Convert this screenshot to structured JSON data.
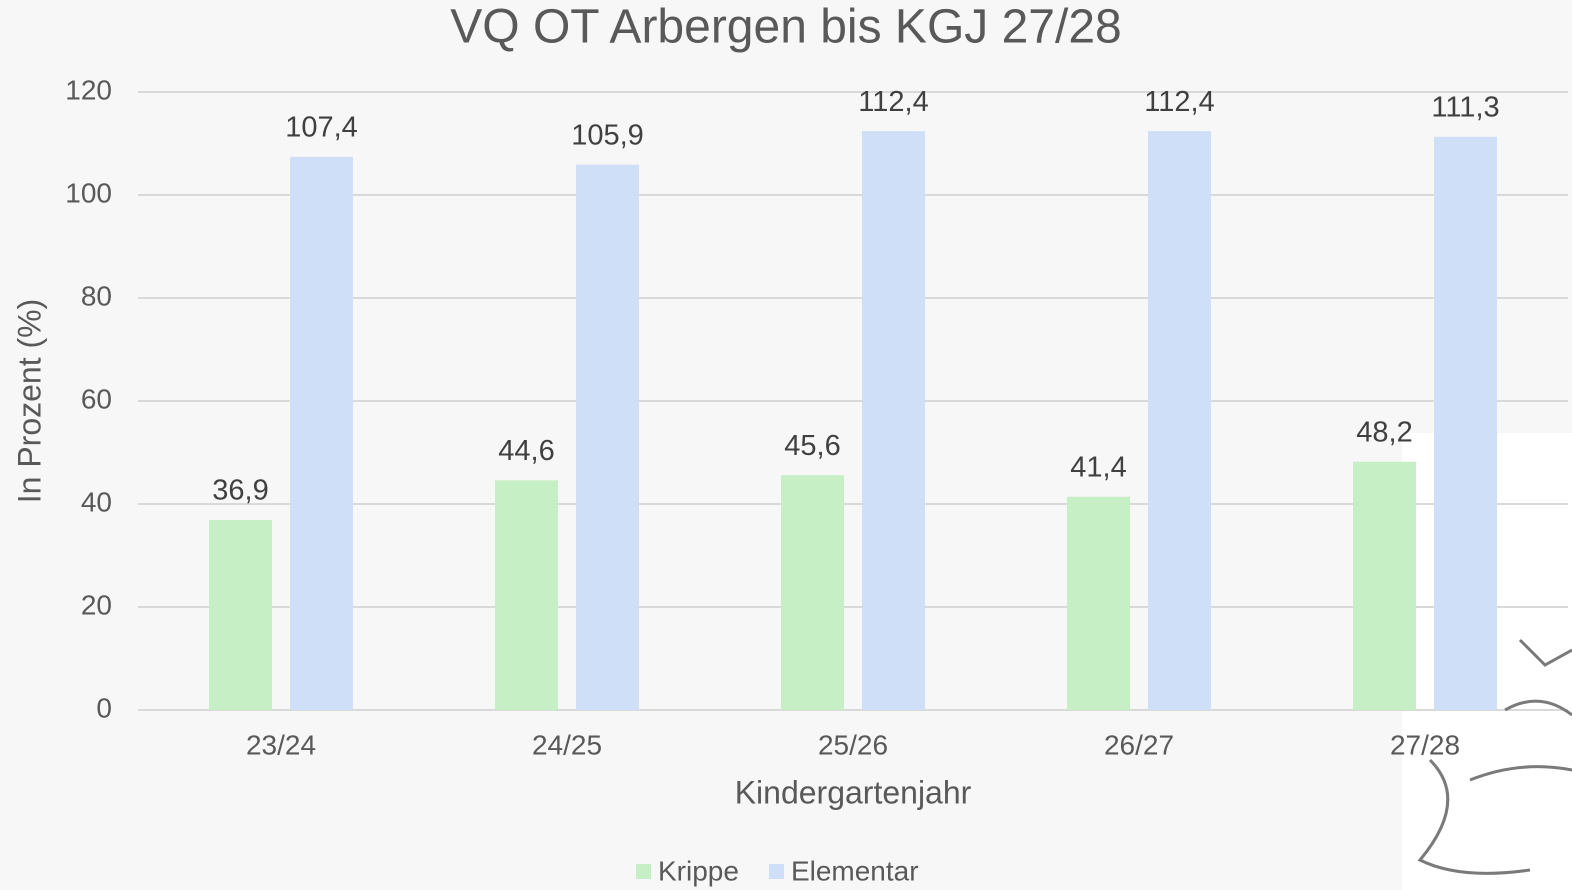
{
  "chart_data": {
    "type": "bar",
    "title": "VQ OT Arbergen bis KGJ 27/28",
    "x_label": "Kindergartenjahr",
    "y_label": "In Prozent (%)",
    "categories": [
      "23/24",
      "24/25",
      "25/26",
      "26/27",
      "27/28"
    ],
    "series": [
      {
        "name": "Krippe",
        "color": "#c6efc6",
        "values": [
          36.9,
          44.6,
          45.6,
          41.4,
          48.2
        ],
        "value_labels": [
          "36,9",
          "44,6",
          "45,6",
          "41,4",
          "48,2"
        ]
      },
      {
        "name": "Elementar",
        "color": "#cfdff7",
        "values": [
          107.4,
          105.9,
          112.4,
          112.4,
          111.3
        ],
        "value_labels": [
          "107,4",
          "105,9",
          "112,4",
          "112,4",
          "111,3"
        ]
      }
    ],
    "ylim": [
      0,
      120
    ],
    "yticks": [
      0,
      20,
      40,
      60,
      80,
      100,
      120
    ],
    "grid": true,
    "legend": "bottom"
  }
}
